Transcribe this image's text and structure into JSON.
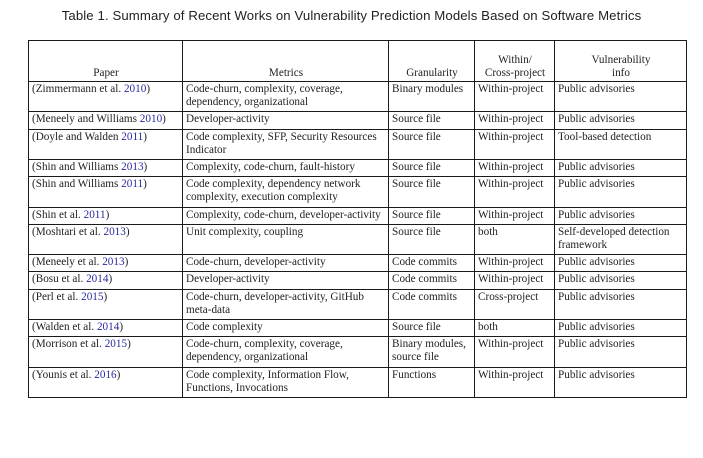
{
  "caption": "Table 1.  Summary of Recent Works on Vulnerability Prediction Models Based on Software Metrics",
  "headers": {
    "paper": "Paper",
    "metrics": "Metrics",
    "granularity": "Granularity",
    "within_line1": "Within/",
    "within_line2": "Cross-project",
    "vuln_line1": "Vulnerability",
    "vuln_line2": "info"
  },
  "rows": [
    {
      "paper_pre": "(Zimmermann et al. ",
      "year": "2010",
      "paper_post": ")",
      "metrics": "Code-churn, complexity, coverage, dependency, organizational",
      "granularity": "Binary modules",
      "within": "Within-project",
      "vuln": "Public advisories"
    },
    {
      "paper_pre": "(Meneely and Williams ",
      "year": "2010",
      "paper_post": ")",
      "metrics": "Developer-activity",
      "granularity": "Source file",
      "within": "Within-project",
      "vuln": "Public advisories"
    },
    {
      "paper_pre": "(Doyle and Walden ",
      "year": "2011",
      "paper_post": ")",
      "metrics": "Code complexity, SFP, Security Resources Indicator",
      "granularity": "Source file",
      "within": "Within-project",
      "vuln": "Tool-based detection"
    },
    {
      "paper_pre": "(Shin and Williams ",
      "year": "2013",
      "paper_post": ")",
      "metrics": "Complexity, code-churn, fault-history",
      "granularity": "Source file",
      "within": "Within-project",
      "vuln": "Public advisories"
    },
    {
      "paper_pre": "(Shin and Williams ",
      "year": "2011",
      "paper_post": ")",
      "metrics": "Code complexity, dependency network complexity, execution complexity",
      "granularity": "Source file",
      "within": "Within-project",
      "vuln": "Public advisories"
    },
    {
      "paper_pre": "(Shin et al. ",
      "year": "2011",
      "paper_post": ")",
      "metrics": "Complexity, code-churn, developer-activity",
      "granularity": "Source file",
      "within": "Within-project",
      "vuln": "Public advisories"
    },
    {
      "paper_pre": "(Moshtari et al. ",
      "year": "2013",
      "paper_post": ")",
      "metrics": "Unit complexity, coupling",
      "granularity": "Source file",
      "within": "both",
      "vuln": "Self-developed detection framework"
    },
    {
      "paper_pre": "(Meneely et al. ",
      "year": "2013",
      "paper_post": ")",
      "metrics": "Code-churn, developer-activity",
      "granularity": "Code commits",
      "within": "Within-project",
      "vuln": "Public advisories"
    },
    {
      "paper_pre": "(Bosu et al. ",
      "year": "2014",
      "paper_post": ")",
      "metrics": "Developer-activity",
      "granularity": "Code commits",
      "within": "Within-project",
      "vuln": "Public advisories"
    },
    {
      "paper_pre": "(Perl et al. ",
      "year": "2015",
      "paper_post": ")",
      "metrics": "Code-churn, developer-activity, GitHub meta-data",
      "granularity": "Code commits",
      "within": "Cross-project",
      "vuln": "Public advisories"
    },
    {
      "paper_pre": "(Walden et al. ",
      "year": "2014",
      "paper_post": ")",
      "metrics": "Code complexity",
      "granularity": "Source file",
      "within": "both",
      "vuln": "Public advisories"
    },
    {
      "paper_pre": "(Morrison et al. ",
      "year": "2015",
      "paper_post": ")",
      "metrics": "Code-churn, complexity, coverage, dependency, organizational",
      "granularity": "Binary modules, source file",
      "within": "Within-project",
      "vuln": "Public advisories"
    },
    {
      "paper_pre": "(Younis et al. ",
      "year": "2016",
      "paper_post": ")",
      "metrics": "Code complexity, Information Flow, Functions, Invocations",
      "granularity": "Functions",
      "within": "Within-project",
      "vuln": "Public advisories"
    }
  ]
}
